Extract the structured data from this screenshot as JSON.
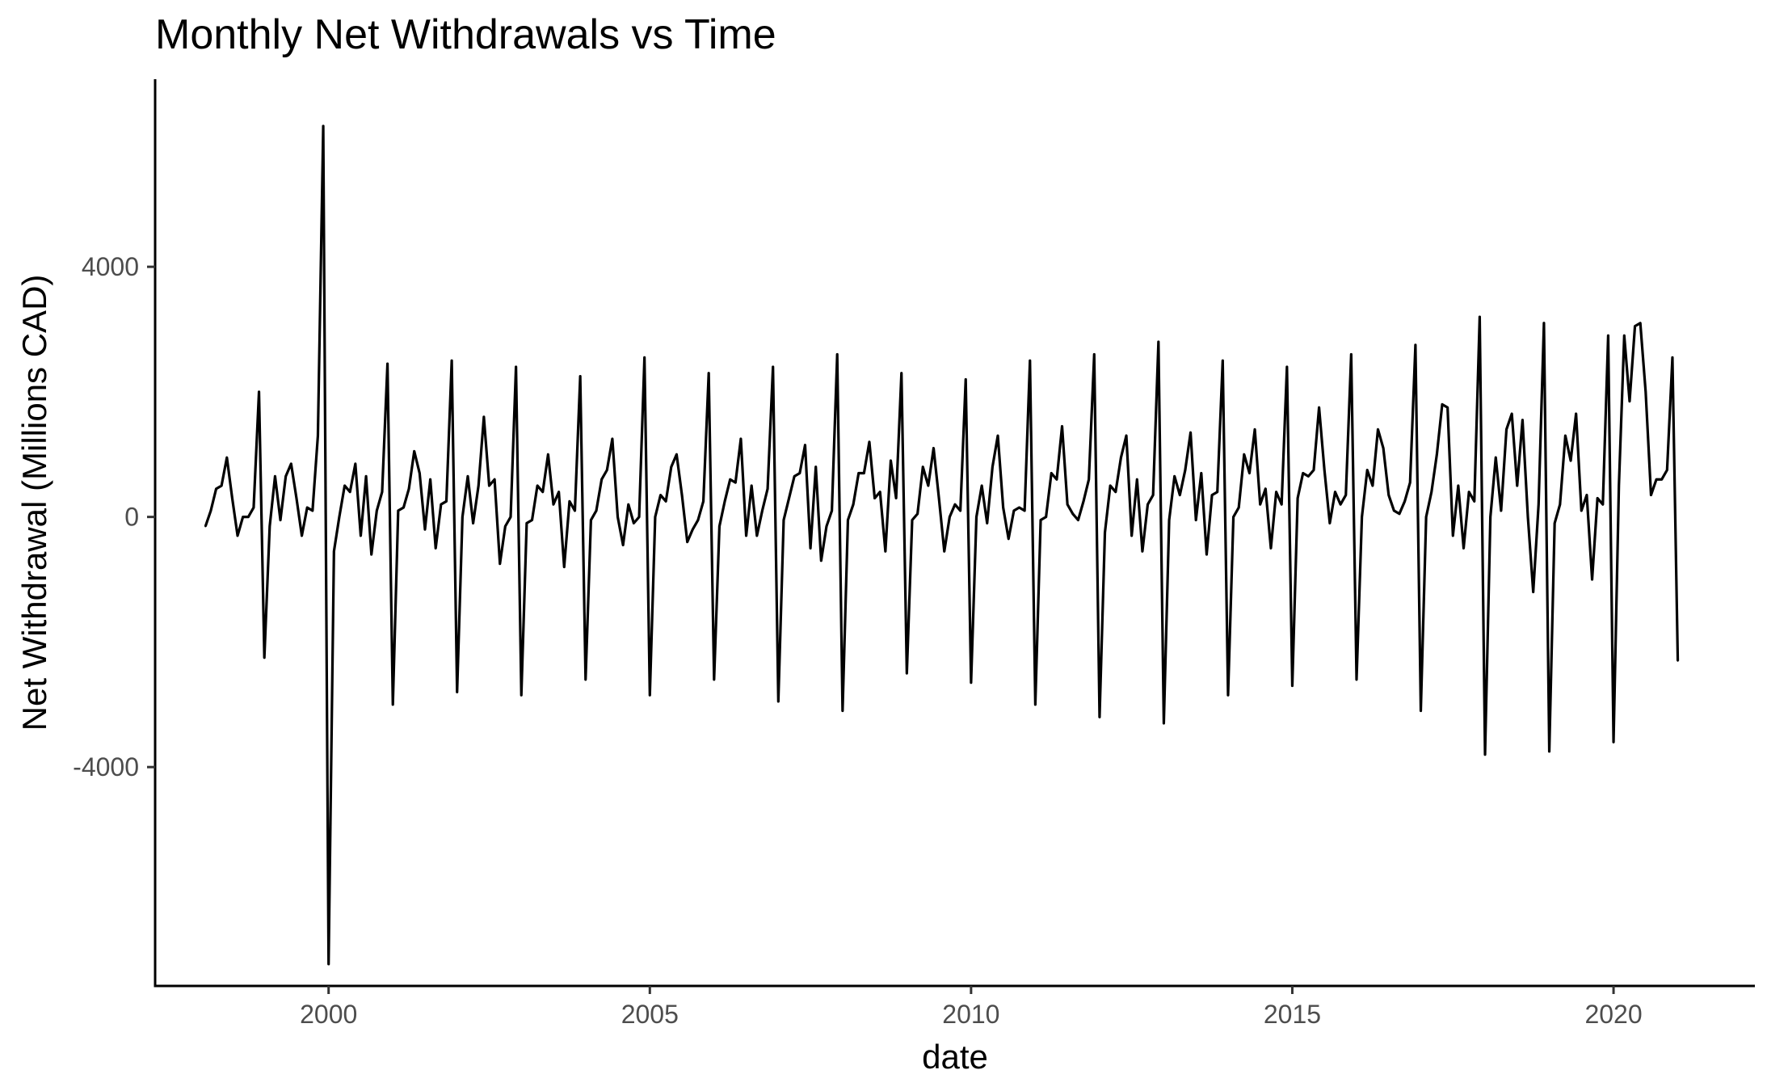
{
  "chart_data": {
    "type": "line",
    "title": "Monthly Net Withdrawals vs Time",
    "xlabel": "date",
    "ylabel": "Net Withdrawal (Millions CAD)",
    "xlim": [
      1997.3,
      2022.2
    ],
    "ylim": [
      -7500,
      7000
    ],
    "x_ticks": [
      2000,
      2005,
      2010,
      2015,
      2020
    ],
    "x_tick_labels": [
      "2000",
      "2005",
      "2010",
      "2015",
      "2020"
    ],
    "y_ticks": [
      -4000,
      0,
      4000
    ],
    "y_tick_labels": [
      "-4000",
      "0",
      "4000"
    ],
    "grid": false,
    "legend": "none",
    "line_color": "#000000",
    "series": [
      {
        "x_start": "1998-02",
        "frequency": "monthly",
        "values": [
          -150,
          100,
          450,
          500,
          950,
          300,
          -300,
          0,
          0,
          150,
          2000,
          -2250,
          -150,
          650,
          -50,
          650,
          850,
          300,
          -300,
          150,
          100,
          1300,
          6250,
          -7150,
          -550,
          0,
          500,
          400,
          850,
          -300,
          650,
          -600,
          100,
          400,
          2450,
          -3000,
          100,
          150,
          450,
          1050,
          700,
          -200,
          600,
          -500,
          200,
          250,
          2500,
          -2800,
          0,
          650,
          -100,
          500,
          1600,
          500,
          600,
          -750,
          -150,
          0,
          2400,
          -2850,
          -100,
          -50,
          500,
          400,
          1000,
          200,
          400,
          -800,
          250,
          100,
          2250,
          -2600,
          -50,
          100,
          600,
          750,
          1250,
          0,
          -450,
          200,
          -100,
          0,
          2550,
          -2850,
          0,
          350,
          250,
          800,
          1000,
          350,
          -400,
          -200,
          -50,
          250,
          2300,
          -2600,
          -150,
          250,
          600,
          550,
          1250,
          -300,
          500,
          -300,
          100,
          450,
          2400,
          -2950,
          -50,
          300,
          650,
          700,
          1150,
          -500,
          800,
          -700,
          -150,
          100,
          2600,
          -3100,
          -50,
          200,
          700,
          700,
          1200,
          300,
          400,
          -550,
          900,
          300,
          2300,
          -2500,
          -50,
          50,
          800,
          500,
          1100,
          300,
          -550,
          0,
          200,
          100,
          2200,
          -2650,
          0,
          500,
          -100,
          800,
          1300,
          150,
          -350,
          100,
          150,
          100,
          2500,
          -3000,
          -50,
          0,
          700,
          600,
          1450,
          200,
          50,
          -50,
          250,
          600,
          2600,
          -3200,
          -250,
          500,
          400,
          950,
          1300,
          -300,
          600,
          -550,
          200,
          350,
          2800,
          -3300,
          -50,
          650,
          350,
          750,
          1350,
          -50,
          700,
          -600,
          350,
          400,
          2500,
          -2850,
          0,
          150,
          1000,
          700,
          1400,
          200,
          450,
          -500,
          400,
          200,
          2400,
          -2700,
          300,
          700,
          650,
          750,
          1750,
          750,
          -100,
          400,
          200,
          350,
          2600,
          -2600,
          0,
          750,
          500,
          1400,
          1100,
          350,
          100,
          50,
          250,
          550,
          2750,
          -3100,
          0,
          400,
          1000,
          1800,
          1750,
          -300,
          500,
          -500,
          400,
          250,
          3200,
          -3800,
          0,
          950,
          100,
          1400,
          1650,
          500,
          1550,
          0,
          -1200,
          200,
          3100,
          -3750,
          -100,
          200,
          1300,
          900,
          1650,
          100,
          350,
          -1000,
          300,
          200,
          2900,
          -3600,
          500,
          2900,
          1850,
          3050,
          3100,
          2000,
          350,
          600,
          600,
          750,
          2550,
          -2300
        ]
      }
    ]
  }
}
